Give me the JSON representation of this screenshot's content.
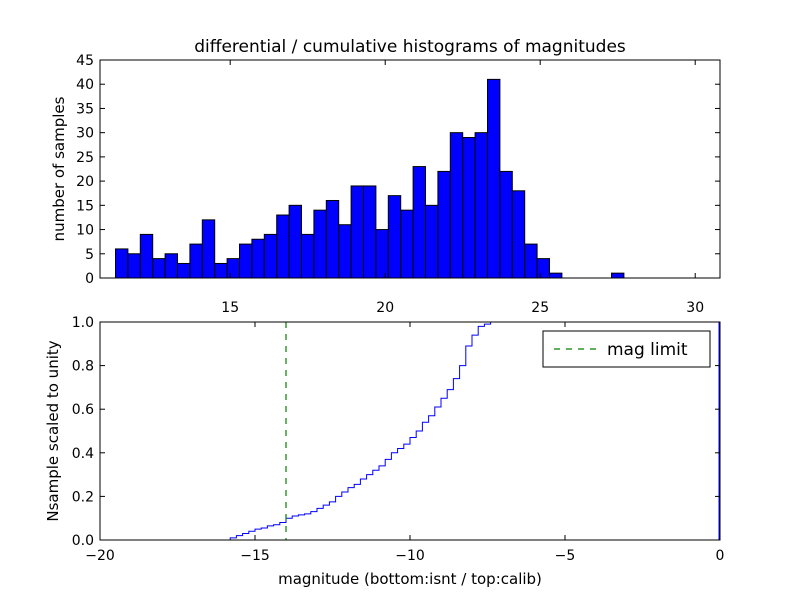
{
  "colors": {
    "bar": "#0000ff",
    "cumulative": "#0000ff",
    "mag_limit": "#008000",
    "axis": "#000000",
    "background": "#ffffff"
  },
  "chart_data": [
    {
      "type": "bar",
      "title": "differential / cumulative histograms of magnitudes",
      "xlabel": "",
      "ylabel": "number of samples",
      "xlim": [
        10.8,
        30.8
      ],
      "ylim": [
        0,
        45
      ],
      "x_ticks": [
        15,
        20,
        25,
        30
      ],
      "y_ticks": [
        0,
        5,
        10,
        15,
        20,
        25,
        30,
        35,
        40,
        45
      ],
      "x_tick_position": "top",
      "bin_start": 11.3,
      "bin_width": 0.4,
      "values": [
        6,
        5,
        9,
        4,
        5,
        3,
        7,
        12,
        3,
        4,
        7,
        8,
        9,
        13,
        15,
        9,
        14,
        16,
        11,
        19,
        19,
        10,
        17,
        14,
        23,
        15,
        22,
        30,
        29,
        30,
        41,
        22,
        18,
        7,
        4,
        1,
        0,
        0,
        0,
        0,
        1,
        0,
        0,
        0,
        0
      ]
    },
    {
      "type": "line",
      "drawstyle": "steps",
      "xlabel": "magnitude (bottom:isnt / top:calib)",
      "ylabel": "Nsample scaled to unity",
      "xlim": [
        -20,
        0
      ],
      "ylim": [
        0,
        1.0
      ],
      "x_ticks": [
        -20,
        -15,
        -10,
        -5,
        0
      ],
      "y_ticks": [
        0.0,
        0.2,
        0.4,
        0.6,
        0.8,
        1.0
      ],
      "x_tick_labels": [
        "−20",
        "−15",
        "−10",
        "−5",
        "0"
      ],
      "y_tick_labels": [
        "0.0",
        "0.2",
        "0.4",
        "0.6",
        "0.8",
        "1.0"
      ],
      "series": [
        {
          "name": "cumulative",
          "x": [
            -20.0,
            -15.8,
            -15.6,
            -15.4,
            -15.2,
            -15.0,
            -14.8,
            -14.6,
            -14.4,
            -14.2,
            -14.0,
            -13.8,
            -13.6,
            -13.4,
            -13.2,
            -13.0,
            -12.8,
            -12.6,
            -12.4,
            -12.2,
            -12.0,
            -11.8,
            -11.6,
            -11.4,
            -11.2,
            -11.0,
            -10.8,
            -10.6,
            -10.4,
            -10.2,
            -10.0,
            -9.8,
            -9.6,
            -9.4,
            -9.2,
            -9.0,
            -8.8,
            -8.6,
            -8.4,
            -8.2,
            -8.0,
            -7.8,
            -7.6,
            -7.4,
            -7.2,
            -7.0,
            0.0
          ],
          "y": [
            0.0,
            0.01,
            0.02,
            0.03,
            0.04,
            0.05,
            0.055,
            0.065,
            0.07,
            0.08,
            0.1,
            0.11,
            0.115,
            0.12,
            0.13,
            0.145,
            0.16,
            0.175,
            0.2,
            0.22,
            0.24,
            0.255,
            0.28,
            0.3,
            0.32,
            0.34,
            0.37,
            0.4,
            0.42,
            0.44,
            0.47,
            0.5,
            0.54,
            0.57,
            0.61,
            0.65,
            0.69,
            0.74,
            0.8,
            0.89,
            0.94,
            0.98,
            0.99,
            1.0,
            1.0,
            1.0,
            1.0
          ]
        }
      ],
      "vline": {
        "name": "mag limit",
        "x": -14.0,
        "style": "dashed"
      },
      "legend": {
        "label": "mag limit",
        "placement": "top-right"
      }
    }
  ]
}
